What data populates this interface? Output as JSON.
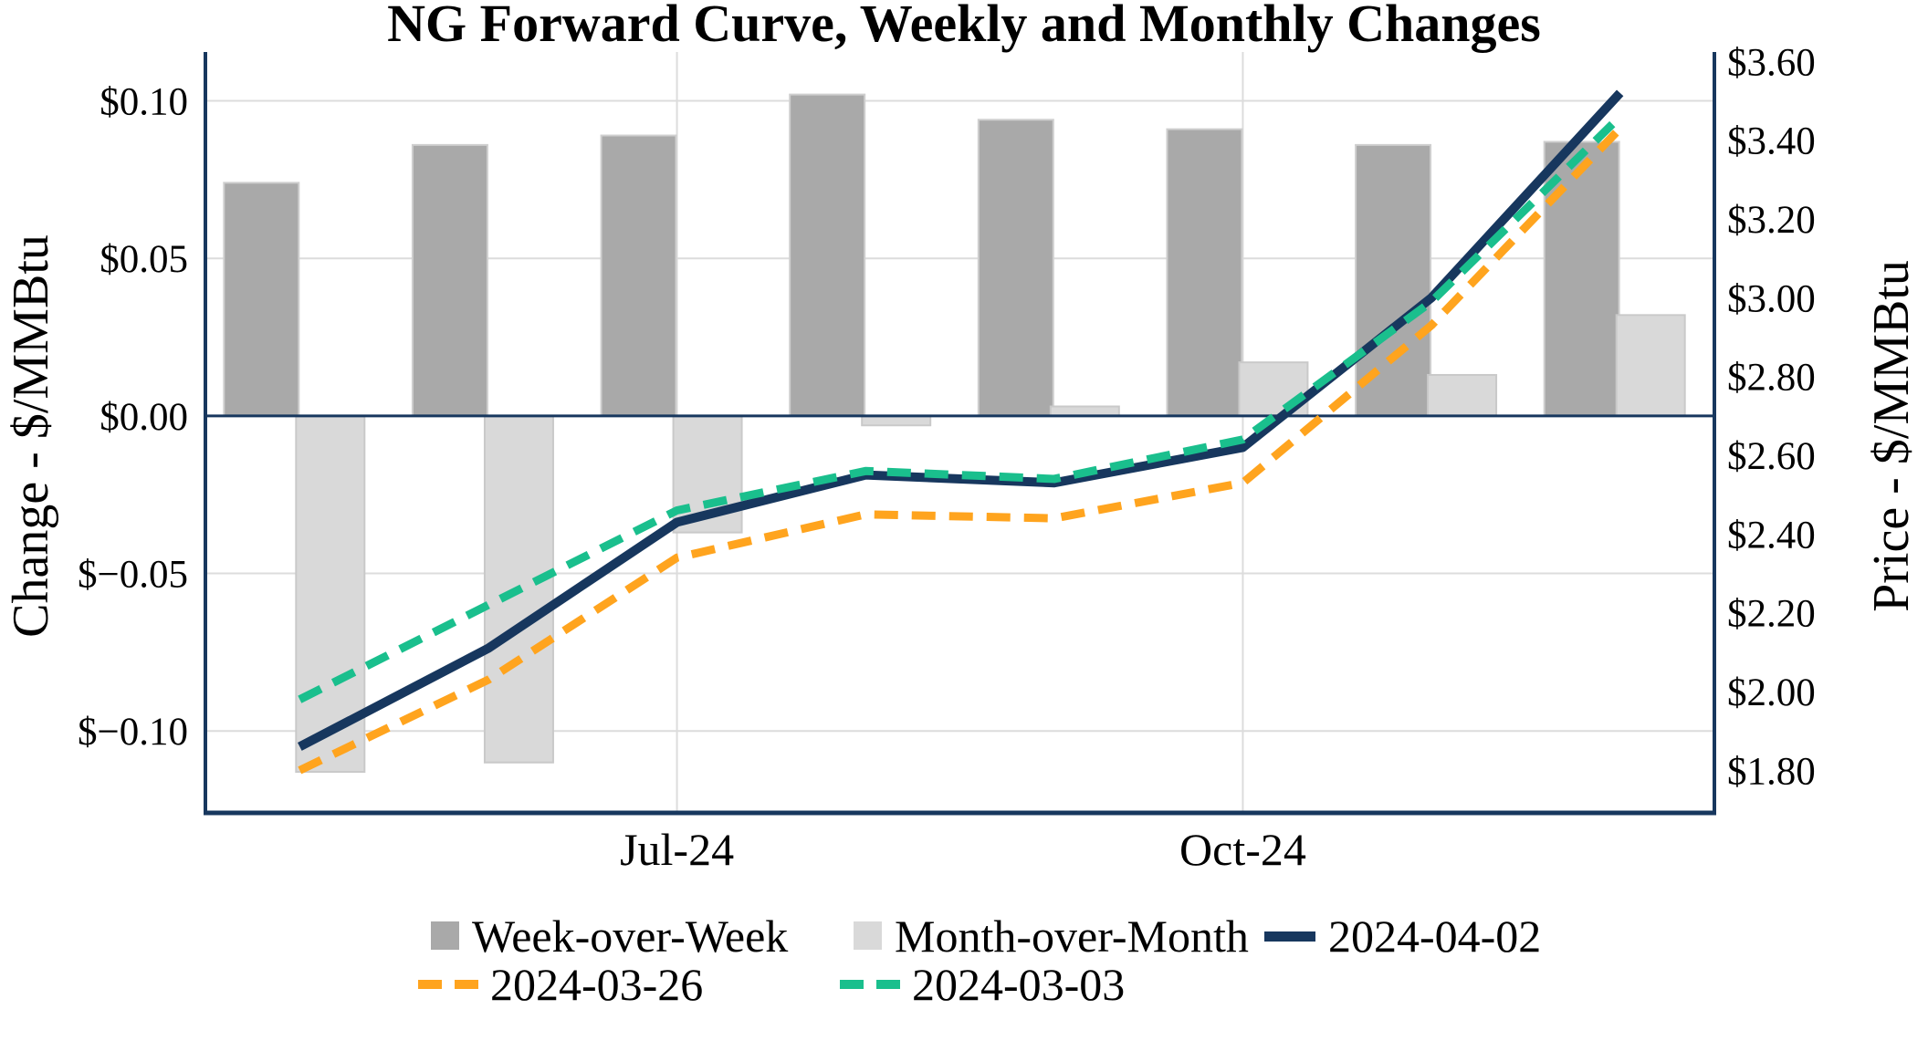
{
  "title": "NG Forward Curve, Weekly and Monthly Changes",
  "left_axis": {
    "title": "Change - $/MMBtu",
    "ticks": [
      {
        "label": "$0.10",
        "value": 0.1
      },
      {
        "label": "$0.05",
        "value": 0.05
      },
      {
        "label": "$0.00",
        "value": 0.0
      },
      {
        "label": "$−0.05",
        "value": -0.05
      },
      {
        "label": "$−0.10",
        "value": -0.1
      }
    ]
  },
  "right_axis": {
    "title": "Price - $/MMBtu",
    "ticks": [
      {
        "label": "$3.60",
        "value": 3.6
      },
      {
        "label": "$3.40",
        "value": 3.4
      },
      {
        "label": "$3.20",
        "value": 3.2
      },
      {
        "label": "$3.00",
        "value": 3.0
      },
      {
        "label": "$2.80",
        "value": 2.8
      },
      {
        "label": "$2.60",
        "value": 2.6
      },
      {
        "label": "$2.40",
        "value": 2.4
      },
      {
        "label": "$2.20",
        "value": 2.2
      },
      {
        "label": "$2.00",
        "value": 2.0
      },
      {
        "label": "$1.80",
        "value": 1.8
      }
    ]
  },
  "x_axis": {
    "ticks": [
      {
        "label": "Jul-24",
        "category_index": 2
      },
      {
        "label": "Oct-24",
        "category_index": 5
      }
    ]
  },
  "legend": {
    "rows": [
      [
        {
          "series": "wow",
          "marker": "square",
          "color_key": "dark_gray",
          "label": "Week-over-Week"
        },
        {
          "series": "mom",
          "marker": "square",
          "color_key": "light_gray",
          "label": "Month-over-Month"
        },
        {
          "series": "line-2024-04-02",
          "marker": "line",
          "color_key": "navy",
          "label": "2024-04-02"
        }
      ],
      [
        {
          "series": "line-2024-03-26",
          "marker": "dashes",
          "color_key": "orange",
          "label": "2024-03-26"
        },
        {
          "series": "line-2024-03-03",
          "marker": "dashes",
          "color_key": "green",
          "label": "2024-03-03"
        }
      ]
    ]
  },
  "colors": {
    "navy": "#17375e",
    "orange": "#ffa41e",
    "green": "#1abf8d",
    "dark_gray": "#a9a9a9",
    "dark_gray_border": "#cfcfcf",
    "light_gray": "#d9d9d9",
    "light_gray_border": "#c9c9c9",
    "gridline": "#dcdcdc",
    "text": "#000000"
  },
  "chart_data": {
    "type": "combo-bar-line",
    "categories": [
      "",
      "",
      "Jul-24",
      "",
      "",
      "Oct-24",
      "",
      ""
    ],
    "bar_series": [
      {
        "name": "Week-over-Week",
        "axis": "left",
        "color_key": "dark_gray",
        "values": [
          0.074,
          0.086,
          0.089,
          0.102,
          0.094,
          0.091,
          0.086,
          0.087
        ]
      },
      {
        "name": "Month-over-Month",
        "axis": "left",
        "color_key": "light_gray",
        "values": [
          -0.113,
          -0.11,
          -0.037,
          -0.003,
          0.003,
          0.017,
          0.013,
          0.032
        ]
      }
    ],
    "line_series": [
      {
        "name": "2024-03-26",
        "axis": "right",
        "style": "dashed",
        "color_key": "orange",
        "values": [
          1.8,
          2.03,
          2.34,
          2.45,
          2.44,
          2.53,
          2.93,
          3.43
        ]
      },
      {
        "name": "2024-04-02",
        "axis": "right",
        "style": "solid",
        "color_key": "navy",
        "values": [
          1.86,
          2.11,
          2.43,
          2.55,
          2.53,
          2.62,
          3.0,
          3.52
        ]
      },
      {
        "name": "2024-03-03",
        "axis": "right",
        "style": "dashed",
        "color_key": "green",
        "values": [
          1.98,
          2.22,
          2.46,
          2.56,
          2.54,
          2.64,
          2.99,
          3.46
        ]
      }
    ],
    "left_ylim": [
      -0.126,
      0.1155
    ],
    "right_ylim": [
      1.692,
      3.624
    ],
    "grid": true,
    "legend_position": "bottom"
  }
}
